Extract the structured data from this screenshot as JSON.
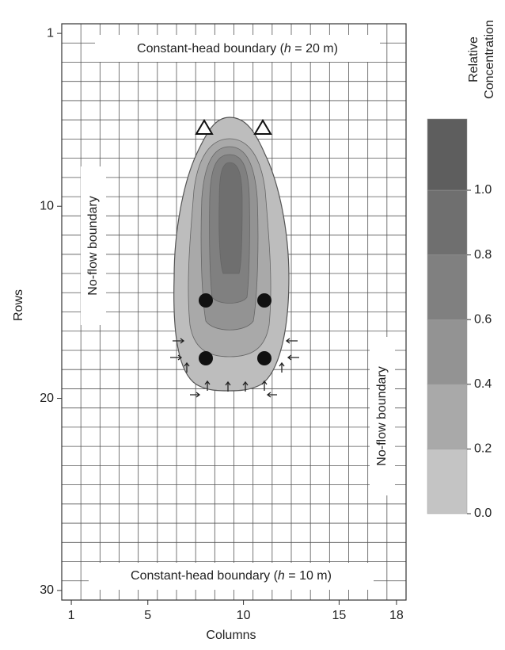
{
  "figure": {
    "columns": {
      "label": "Columns",
      "ticks": [
        1,
        5,
        10,
        15,
        18
      ]
    },
    "rows": {
      "label": "Rows",
      "ticks": [
        1,
        10,
        20,
        30
      ]
    },
    "boundaries": {
      "top": {
        "prefix": "Constant-head boundary (",
        "symbol": "h",
        "suffix": " = 20 m)"
      },
      "bottom": {
        "prefix": "Constant-head boundary (",
        "symbol": "h",
        "suffix": " = 10 m)"
      },
      "left": "No-flow boundary",
      "right": "No-flow boundary"
    },
    "colorbar": {
      "title": [
        "Relative",
        "Concentration"
      ],
      "ticks": [
        {
          "value": 0,
          "label": "0.0"
        },
        {
          "value": 0.2,
          "label": "0.2"
        },
        {
          "value": 0.4,
          "label": "0.4"
        },
        {
          "value": 0.6,
          "label": "0.6"
        },
        {
          "value": 0.8,
          "label": "0.8"
        },
        {
          "value": 1,
          "label": "1.0"
        }
      ]
    }
  }
}
